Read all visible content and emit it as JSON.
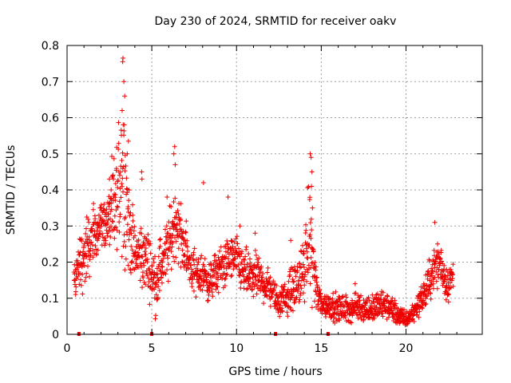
{
  "chart_data": {
    "type": "scatter",
    "title": "Day 230 of 2024, SRMTID for receiver oakv",
    "xlabel": "GPS time / hours",
    "ylabel": "SRMTID / TECUs",
    "xlim": [
      0,
      24.5
    ],
    "ylim": [
      0,
      0.8
    ],
    "xticks": [
      "0",
      "5",
      "10",
      "15",
      "20"
    ],
    "xtick_values": [
      0,
      5,
      10,
      15,
      20
    ],
    "yticks": [
      "0",
      "0.1",
      "0.2",
      "0.3",
      "0.4",
      "0.5",
      "0.6",
      "0.7",
      "0.8"
    ],
    "ytick_values": [
      0,
      0.1,
      0.2,
      0.3,
      0.4,
      0.5,
      0.6,
      0.7,
      0.8
    ],
    "grid": true,
    "marker": "+",
    "color": "#ee0000",
    "series": [
      {
        "name": "SRMTID",
        "envelope": [
          [
            0.0,
            0.2,
            0.02
          ],
          [
            0.4,
            0.15,
            0.05
          ],
          [
            0.8,
            0.2,
            0.07
          ],
          [
            1.2,
            0.23,
            0.07
          ],
          [
            1.6,
            0.28,
            0.07
          ],
          [
            2.0,
            0.31,
            0.05
          ],
          [
            2.4,
            0.31,
            0.06
          ],
          [
            2.8,
            0.35,
            0.12
          ],
          [
            3.0,
            0.38,
            0.15
          ],
          [
            3.2,
            0.5,
            0.22
          ],
          [
            3.4,
            0.42,
            0.15
          ],
          [
            3.7,
            0.28,
            0.08
          ],
          [
            4.0,
            0.22,
            0.07
          ],
          [
            4.4,
            0.22,
            0.07
          ],
          [
            4.8,
            0.2,
            0.07
          ],
          [
            5.2,
            0.14,
            0.06
          ],
          [
            5.6,
            0.2,
            0.07
          ],
          [
            6.0,
            0.24,
            0.07
          ],
          [
            6.4,
            0.32,
            0.08
          ],
          [
            6.8,
            0.26,
            0.07
          ],
          [
            7.2,
            0.2,
            0.05
          ],
          [
            7.6,
            0.16,
            0.05
          ],
          [
            8.0,
            0.17,
            0.05
          ],
          [
            8.4,
            0.14,
            0.04
          ],
          [
            8.8,
            0.17,
            0.05
          ],
          [
            9.2,
            0.19,
            0.05
          ],
          [
            9.6,
            0.21,
            0.05
          ],
          [
            10.0,
            0.21,
            0.05
          ],
          [
            10.4,
            0.17,
            0.05
          ],
          [
            10.8,
            0.16,
            0.05
          ],
          [
            11.2,
            0.16,
            0.05
          ],
          [
            11.6,
            0.14,
            0.04
          ],
          [
            12.0,
            0.13,
            0.04
          ],
          [
            12.4,
            0.09,
            0.03
          ],
          [
            12.8,
            0.1,
            0.04
          ],
          [
            13.2,
            0.12,
            0.05
          ],
          [
            13.6,
            0.14,
            0.05
          ],
          [
            14.0,
            0.18,
            0.07
          ],
          [
            14.3,
            0.28,
            0.12
          ],
          [
            14.5,
            0.2,
            0.08
          ],
          [
            14.8,
            0.1,
            0.04
          ],
          [
            15.2,
            0.08,
            0.03
          ],
          [
            15.6,
            0.08,
            0.03
          ],
          [
            16.0,
            0.07,
            0.03
          ],
          [
            16.4,
            0.07,
            0.03
          ],
          [
            16.8,
            0.07,
            0.03
          ],
          [
            17.2,
            0.08,
            0.03
          ],
          [
            17.6,
            0.07,
            0.03
          ],
          [
            18.0,
            0.07,
            0.03
          ],
          [
            18.4,
            0.08,
            0.03
          ],
          [
            18.8,
            0.08,
            0.03
          ],
          [
            19.2,
            0.07,
            0.03
          ],
          [
            19.6,
            0.05,
            0.02
          ],
          [
            20.0,
            0.04,
            0.02
          ],
          [
            20.4,
            0.06,
            0.02
          ],
          [
            20.8,
            0.09,
            0.03
          ],
          [
            21.2,
            0.12,
            0.04
          ],
          [
            21.6,
            0.18,
            0.05
          ],
          [
            22.0,
            0.2,
            0.05
          ],
          [
            22.4,
            0.14,
            0.04
          ],
          [
            22.8,
            0.16,
            0.04
          ]
        ],
        "spikes": [
          [
            3.3,
            0.765
          ],
          [
            3.28,
            0.755
          ],
          [
            3.35,
            0.7
          ],
          [
            3.4,
            0.66
          ],
          [
            3.25,
            0.62
          ],
          [
            3.38,
            0.58
          ],
          [
            3.62,
            0.535
          ],
          [
            3.55,
            0.5
          ],
          [
            6.35,
            0.52
          ],
          [
            6.3,
            0.5
          ],
          [
            6.38,
            0.47
          ],
          [
            4.4,
            0.45
          ],
          [
            4.42,
            0.43
          ],
          [
            14.35,
            0.5
          ],
          [
            14.4,
            0.49
          ],
          [
            14.45,
            0.45
          ],
          [
            14.42,
            0.41
          ],
          [
            14.48,
            0.35
          ],
          [
            8.05,
            0.42
          ],
          [
            9.5,
            0.38
          ],
          [
            2.5,
            0.43
          ],
          [
            2.6,
            0.4
          ],
          [
            21.7,
            0.31
          ],
          [
            5.9,
            0.38
          ],
          [
            10.2,
            0.3
          ],
          [
            11.1,
            0.28
          ],
          [
            13.2,
            0.26
          ],
          [
            17.0,
            0.14
          ]
        ]
      }
    ],
    "gap_markers_x": [
      0.7,
      5.0,
      12.3,
      15.4
    ]
  }
}
